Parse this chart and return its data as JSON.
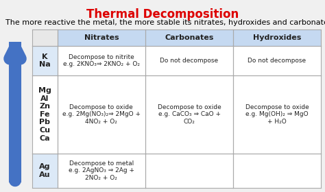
{
  "title": "Thermal Decomposition",
  "subtitle": "The more reactive the metal, the more stable its nitrates, hydroxides and carbonates.",
  "title_color": "#dd0000",
  "bg_color": "#f0f0f0",
  "table_header_bg": "#c5d9f1",
  "table_row1_bg": "#dce9f7",
  "table_row2_bg": "#ffffff",
  "table_row3_bg": "#dce9f7",
  "border_color": "#aaaaaa",
  "col_headers": [
    "",
    "Nitrates",
    "Carbonates",
    "Hydroxides"
  ],
  "rows": [
    {
      "metals": "K\nNa",
      "nitrates": "Decompose to nitrite\ne.g. 2KNO₃⇒ 2KNO₂ + O₂",
      "carbonates": "Do not decompose",
      "hydroxides": "Do not decompose"
    },
    {
      "metals": "Mg\nAl\nZn\nFe\nPb\nCu\nCa",
      "nitrates": "Decompose to oxide\ne.g. 2Mg(NO₃)₂⇒ 2MgO +\n4NO₂ + O₂",
      "carbonates": "Decompose to oxide\ne.g. CaCO₃ ⇒ CaO +\nCO₂",
      "hydroxides": "Decompose to oxide\ne.g. Mg(OH)₂ ⇒ MgO\n+ H₂O"
    },
    {
      "metals": "Ag\nAu",
      "nitrates": "Decompose to metal\ne.g. 2AgNO₃ ⇒ 2Ag +\n2NO₂ + O₂",
      "carbonates": "",
      "hydroxides": ""
    }
  ],
  "arrow_color": "#4472c4",
  "font_size_title": 12,
  "font_size_subtitle": 8,
  "font_size_header": 8,
  "font_size_cell": 6.5,
  "font_size_metals": 8
}
